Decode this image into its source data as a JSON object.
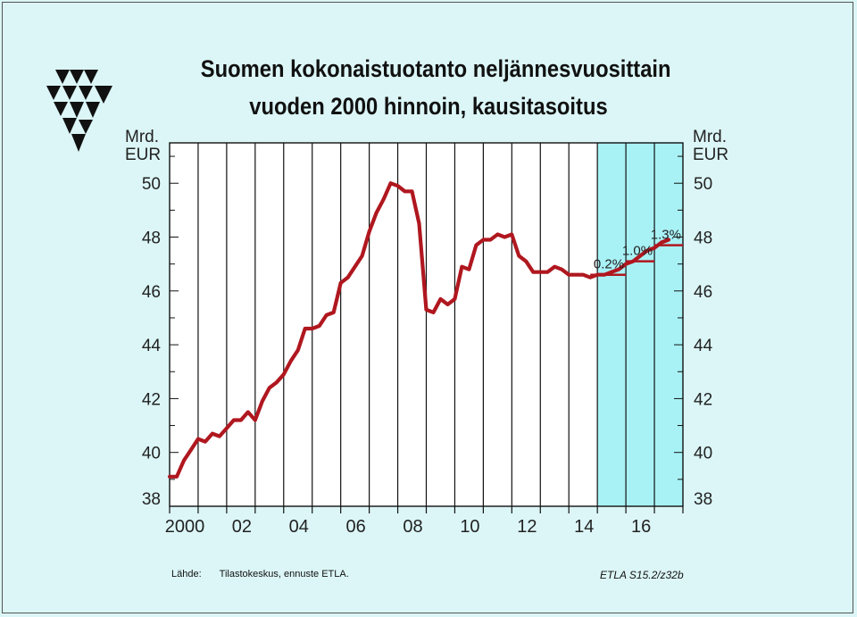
{
  "chart_data": {
    "type": "line",
    "title_line1": "Suomen kokonaistuotanto neljännesvuosittain",
    "title_line2": "vuoden 2000 hinnoin, kausitasoitus",
    "ylabel_left": [
      "Mrd.",
      "EUR"
    ],
    "ylabel_right": [
      "Mrd.",
      "EUR"
    ],
    "ylim": [
      38,
      51.5
    ],
    "xlim": [
      2000,
      2018
    ],
    "yticks": [
      38,
      40,
      42,
      44,
      46,
      48,
      50
    ],
    "xticks": [
      {
        "value": 2000,
        "label": "2000"
      },
      {
        "value": 2002,
        "label": "02"
      },
      {
        "value": 2004,
        "label": "04"
      },
      {
        "value": 2006,
        "label": "06"
      },
      {
        "value": 2008,
        "label": "08"
      },
      {
        "value": 2010,
        "label": "10"
      },
      {
        "value": 2012,
        "label": "12"
      },
      {
        "value": 2014,
        "label": "14"
      },
      {
        "value": 2016,
        "label": "16"
      }
    ],
    "forecast_region": [
      2015,
      2018
    ],
    "grid": true,
    "colors": {
      "line": "#b0171f",
      "forecast_fill": "#a8f2f6",
      "grid": "#111111",
      "background": "#ffffff"
    },
    "series": [
      {
        "values": [
          [
            2000.0,
            39.1
          ],
          [
            2000.25,
            39.1
          ],
          [
            2000.5,
            39.7
          ],
          [
            2000.75,
            40.1
          ],
          [
            2001.0,
            40.5
          ],
          [
            2001.25,
            40.4
          ],
          [
            2001.5,
            40.7
          ],
          [
            2001.75,
            40.6
          ],
          [
            2002.0,
            40.9
          ],
          [
            2002.25,
            41.2
          ],
          [
            2002.5,
            41.2
          ],
          [
            2002.75,
            41.5
          ],
          [
            2003.0,
            41.2
          ],
          [
            2003.25,
            41.9
          ],
          [
            2003.5,
            42.4
          ],
          [
            2003.75,
            42.6
          ],
          [
            2004.0,
            42.9
          ],
          [
            2004.25,
            43.4
          ],
          [
            2004.5,
            43.8
          ],
          [
            2004.75,
            44.6
          ],
          [
            2005.0,
            44.6
          ],
          [
            2005.25,
            44.7
          ],
          [
            2005.5,
            45.1
          ],
          [
            2005.75,
            45.2
          ],
          [
            2006.0,
            46.3
          ],
          [
            2006.25,
            46.5
          ],
          [
            2006.5,
            46.9
          ],
          [
            2006.75,
            47.3
          ],
          [
            2007.0,
            48.2
          ],
          [
            2007.25,
            48.9
          ],
          [
            2007.5,
            49.4
          ],
          [
            2007.75,
            50.0
          ],
          [
            2008.0,
            49.9
          ],
          [
            2008.25,
            49.7
          ],
          [
            2008.5,
            49.7
          ],
          [
            2008.75,
            48.5
          ],
          [
            2009.0,
            45.3
          ],
          [
            2009.25,
            45.2
          ],
          [
            2009.5,
            45.7
          ],
          [
            2009.75,
            45.5
          ],
          [
            2010.0,
            45.7
          ],
          [
            2010.25,
            46.9
          ],
          [
            2010.5,
            46.8
          ],
          [
            2010.75,
            47.7
          ],
          [
            2011.0,
            47.9
          ],
          [
            2011.25,
            47.9
          ],
          [
            2011.5,
            48.1
          ],
          [
            2011.75,
            48.0
          ],
          [
            2012.0,
            48.1
          ],
          [
            2012.25,
            47.3
          ],
          [
            2012.5,
            47.1
          ],
          [
            2012.75,
            46.7
          ],
          [
            2013.0,
            46.7
          ],
          [
            2013.25,
            46.7
          ],
          [
            2013.5,
            46.9
          ],
          [
            2013.75,
            46.8
          ],
          [
            2014.0,
            46.6
          ],
          [
            2014.25,
            46.6
          ],
          [
            2014.5,
            46.6
          ],
          [
            2014.75,
            46.5
          ],
          [
            2015.0,
            46.6
          ],
          [
            2015.25,
            46.6
          ],
          [
            2015.5,
            46.7
          ],
          [
            2015.75,
            46.8
          ],
          [
            2016.0,
            47.0
          ],
          [
            2016.25,
            47.1
          ],
          [
            2016.5,
            47.3
          ],
          [
            2016.75,
            47.5
          ],
          [
            2017.0,
            47.6
          ],
          [
            2017.25,
            47.8
          ],
          [
            2017.5,
            47.9
          ]
        ]
      }
    ],
    "annual_averages": [
      {
        "x_start": 2014.75,
        "x_end": 2016.0,
        "value": 46.6,
        "label": "0.2%"
      },
      {
        "x_start": 2016.0,
        "x_end": 2017.0,
        "value": 47.1,
        "label": "1.0%"
      },
      {
        "x_start": 2017.0,
        "x_end": 2018.0,
        "value": 47.7,
        "label": "1.3%"
      }
    ]
  },
  "footer": {
    "source_label": "Lähde:",
    "source_text": "Tilastokeskus, ennuste ETLA.",
    "code": "ETLA S15.2/z32b"
  },
  "logo": {
    "icon": "etla-logo-icon"
  }
}
